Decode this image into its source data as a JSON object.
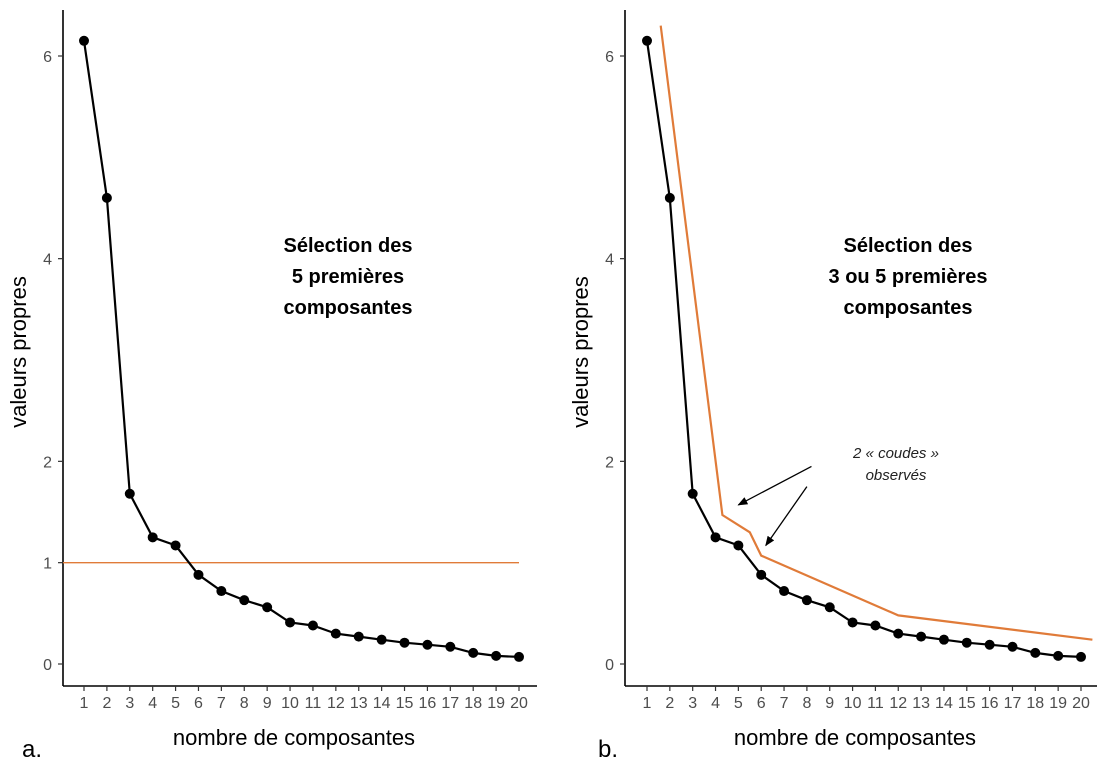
{
  "chart_data": [
    {
      "type": "line",
      "panel_label": "a.",
      "xlabel": "nombre de composantes",
      "ylabel": "valeurs propres",
      "x": [
        1,
        2,
        3,
        4,
        5,
        6,
        7,
        8,
        9,
        10,
        11,
        12,
        13,
        14,
        15,
        16,
        17,
        18,
        19,
        20
      ],
      "series": [
        {
          "values": [
            6.15,
            4.6,
            1.68,
            1.25,
            1.17,
            0.88,
            0.72,
            0.63,
            0.56,
            0.41,
            0.38,
            0.3,
            0.27,
            0.24,
            0.21,
            0.19,
            0.17,
            0.11,
            0.08,
            0.07
          ],
          "color": "#000000",
          "markers": true
        }
      ],
      "hline": {
        "y": 1,
        "color": "#e07b39"
      },
      "yticks": [
        "0",
        "1",
        "2",
        "4",
        "6"
      ],
      "ytick_values": [
        0,
        1,
        2,
        4,
        6
      ],
      "ylim": [
        -0.1,
        6.5
      ],
      "xlim": [
        0.3,
        20.8
      ],
      "annotation_lines": [
        "Sélection des",
        "5 premières",
        "composantes"
      ],
      "grid": false
    },
    {
      "type": "line",
      "panel_label": "b.",
      "xlabel": "nombre de composantes",
      "ylabel": "valeurs propres",
      "x": [
        1,
        2,
        3,
        4,
        5,
        6,
        7,
        8,
        9,
        10,
        11,
        12,
        13,
        14,
        15,
        16,
        17,
        18,
        19,
        20
      ],
      "series": [
        {
          "values": [
            6.15,
            4.6,
            1.68,
            1.25,
            1.17,
            0.88,
            0.72,
            0.63,
            0.56,
            0.41,
            0.38,
            0.3,
            0.27,
            0.24,
            0.21,
            0.19,
            0.17,
            0.11,
            0.08,
            0.07
          ],
          "color": "#000000",
          "markers": true
        }
      ],
      "guide_line": {
        "color": "#e07b39",
        "points": [
          [
            1.6,
            6.3
          ],
          [
            4.3,
            1.47
          ],
          [
            5.5,
            1.3
          ],
          [
            6.0,
            1.07
          ],
          [
            12.0,
            0.48
          ],
          [
            20.5,
            0.24
          ]
        ]
      },
      "yticks": [
        "0",
        "2",
        "4",
        "6"
      ],
      "ytick_values": [
        0,
        2,
        4,
        6
      ],
      "ylim": [
        -0.1,
        6.5
      ],
      "xlim": [
        0.3,
        20.8
      ],
      "annotation_lines": [
        "Sélection des",
        "3 ou 5 premières",
        "composantes"
      ],
      "italic_note_lines": [
        "2 « coudes »",
        "observés"
      ],
      "arrows": [
        {
          "from": [
            8.2,
            1.95
          ],
          "to": [
            5.0,
            1.57
          ]
        },
        {
          "from": [
            8.0,
            1.75
          ],
          "to": [
            6.2,
            1.17
          ]
        }
      ],
      "grid": false
    }
  ]
}
